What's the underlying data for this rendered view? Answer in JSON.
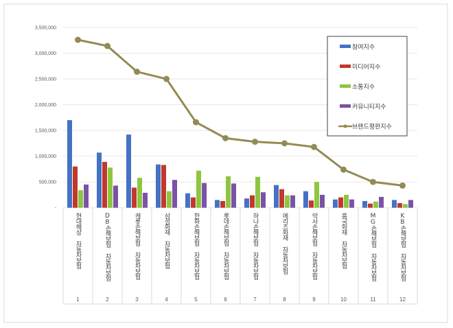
{
  "chart_data": {
    "type": "bar",
    "title": "",
    "xlabel": "",
    "ylabel": "",
    "ylim": [
      0,
      3500000
    ],
    "yticks": [
      0,
      500000,
      1000000,
      1500000,
      2000000,
      2500000,
      3000000,
      3500000
    ],
    "ytick_labels": [
      "-",
      "500,000",
      "1,000,000",
      "1,500,000",
      "2,000,000",
      "2,500,000",
      "3,000,000",
      "3,500,000"
    ],
    "grid": true,
    "legend_position": "top-right",
    "categories": [
      "현대해상 자동차보험",
      "DB손해보험 자동차보험",
      "캐롯손해보험 자동차보험",
      "삼성화재 자동차보험",
      "한화손해보험 자동차보험",
      "롯데손해보험 자동차보험",
      "하나손해보험 자동차보험",
      "메리츠화재 자동차보험",
      "악사손해보험 자동차보험",
      "흥국화재 자동차보험",
      "MG손해보험 자동차보험",
      "KB손해보험 자동차보험"
    ],
    "ranks": [
      "1",
      "2",
      "3",
      "4",
      "5",
      "6",
      "7",
      "8",
      "9",
      "10",
      "11",
      "12"
    ],
    "series": [
      {
        "name": "참여지수",
        "type": "bar",
        "color": "#4472C4",
        "values": [
          1700000,
          1070000,
          1420000,
          840000,
          280000,
          150000,
          180000,
          440000,
          320000,
          160000,
          130000,
          150000
        ]
      },
      {
        "name": "미디어지수",
        "type": "bar",
        "color": "#C0392B",
        "values": [
          800000,
          890000,
          390000,
          830000,
          200000,
          130000,
          240000,
          360000,
          140000,
          200000,
          80000,
          90000
        ]
      },
      {
        "name": "소통지수",
        "type": "bar",
        "color": "#8DC63F",
        "values": [
          340000,
          780000,
          580000,
          320000,
          720000,
          610000,
          600000,
          240000,
          500000,
          250000,
          120000,
          70000
        ]
      },
      {
        "name": "커뮤니티지수",
        "type": "bar",
        "color": "#7B52A6",
        "values": [
          450000,
          430000,
          290000,
          540000,
          480000,
          470000,
          300000,
          240000,
          250000,
          160000,
          210000,
          150000
        ]
      },
      {
        "name": "브랜드평판지수",
        "type": "line",
        "color": "#948A54",
        "values": [
          3260000,
          3140000,
          2640000,
          2500000,
          1660000,
          1350000,
          1280000,
          1250000,
          1180000,
          740000,
          500000,
          430000
        ]
      }
    ]
  }
}
